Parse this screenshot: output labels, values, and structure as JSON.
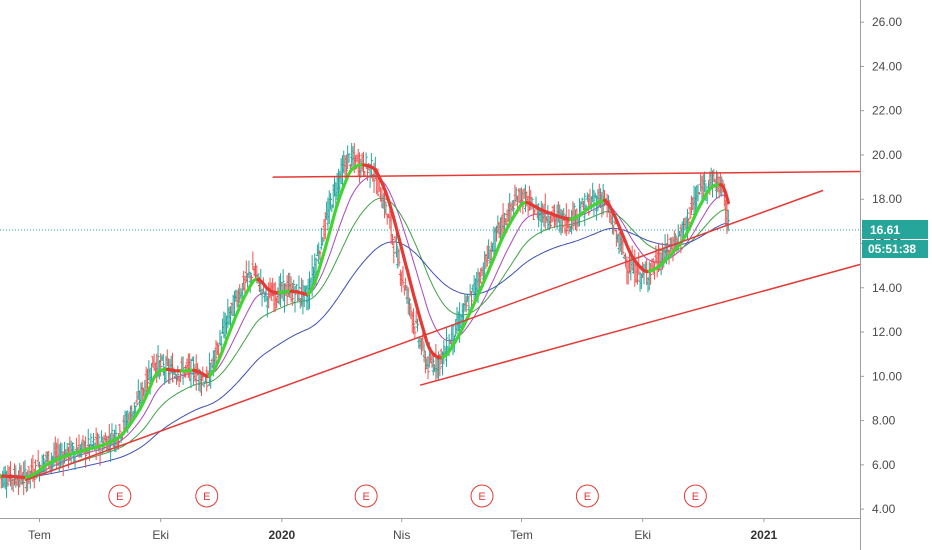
{
  "chart_data": {
    "type": "candlestick",
    "y_axis": {
      "range": [
        3.6,
        27.0
      ],
      "ticks": [
        "26.00",
        "24.00",
        "22.00",
        "20.00",
        "18.00",
        "16.00",
        "14.00",
        "12.00",
        "10.00",
        "8.00",
        "6.00",
        "4.00"
      ],
      "position": "right"
    },
    "x_axis": {
      "range": [
        "2019-06-01",
        "2021-03-15"
      ],
      "labels": [
        {
          "text": "Tem",
          "date": "2019-07-01",
          "bold": false
        },
        {
          "text": "Eki",
          "date": "2019-10-01",
          "bold": false
        },
        {
          "text": "2020",
          "date": "2020-01-01",
          "bold": true
        },
        {
          "text": "Nis",
          "date": "2020-04-01",
          "bold": false
        },
        {
          "text": "Tem",
          "date": "2020-07-01",
          "bold": false
        },
        {
          "text": "Eki",
          "date": "2020-10-01",
          "bold": false
        },
        {
          "text": "2021",
          "date": "2021-01-01",
          "bold": true
        }
      ]
    },
    "price_path": [
      [
        "2019-06-01",
        5.5
      ],
      [
        "2019-06-20",
        5.4
      ],
      [
        "2019-07-05",
        6.2
      ],
      [
        "2019-07-25",
        6.6
      ],
      [
        "2019-08-15",
        6.9
      ],
      [
        "2019-08-30",
        7.4
      ],
      [
        "2019-09-15",
        9.0
      ],
      [
        "2019-09-25",
        10.6
      ],
      [
        "2019-10-10",
        10.2
      ],
      [
        "2019-10-25",
        10.3
      ],
      [
        "2019-11-05",
        9.8
      ],
      [
        "2019-11-20",
        12.5
      ],
      [
        "2019-12-01",
        14.0
      ],
      [
        "2019-12-10",
        14.8
      ],
      [
        "2019-12-20",
        13.6
      ],
      [
        "2020-01-05",
        13.9
      ],
      [
        "2020-01-20",
        13.6
      ],
      [
        "2020-01-30",
        16.0
      ],
      [
        "2020-02-10",
        18.5
      ],
      [
        "2020-02-20",
        19.8
      ],
      [
        "2020-03-01",
        19.6
      ],
      [
        "2020-03-10",
        19.3
      ],
      [
        "2020-03-20",
        17.5
      ],
      [
        "2020-03-30",
        15.0
      ],
      [
        "2020-04-10",
        12.5
      ],
      [
        "2020-04-20",
        10.5
      ],
      [
        "2020-05-01",
        10.8
      ],
      [
        "2020-05-15",
        12.5
      ],
      [
        "2020-05-30",
        14.5
      ],
      [
        "2020-06-15",
        16.8
      ],
      [
        "2020-06-30",
        18.2
      ],
      [
        "2020-07-10",
        17.5
      ],
      [
        "2020-07-25",
        17.2
      ],
      [
        "2020-08-05",
        17.0
      ],
      [
        "2020-08-20",
        17.8
      ],
      [
        "2020-09-01",
        18.1
      ],
      [
        "2020-09-10",
        16.5
      ],
      [
        "2020-09-20",
        15.0
      ],
      [
        "2020-10-01",
        14.5
      ],
      [
        "2020-10-15",
        15.3
      ],
      [
        "2020-10-30",
        16.4
      ],
      [
        "2020-11-10",
        18.0
      ],
      [
        "2020-11-20",
        18.9
      ],
      [
        "2020-11-30",
        18.6
      ],
      [
        "2020-12-05",
        16.6
      ]
    ],
    "bar_noise": 0.45,
    "last_price": "16.61",
    "countdown": "05:51:38",
    "trend_lines": [
      {
        "name": "resistance",
        "from": [
          "2019-12-25",
          19.0
        ],
        "to": [
          "2021-03-15",
          19.25
        ]
      },
      {
        "name": "rising-support",
        "from": [
          "2019-06-20",
          5.3
        ],
        "to": [
          "2021-02-15",
          18.4
        ]
      },
      {
        "name": "long-support",
        "from": [
          "2020-04-15",
          9.6
        ],
        "to": [
          "2021-03-15",
          15.05
        ]
      }
    ],
    "moving_averages": [
      {
        "name": "ma-fast",
        "color": "#555555",
        "smoothing": 0.16
      },
      {
        "name": "ma-medium",
        "color": "#ab47bc",
        "smoothing": 0.07
      },
      {
        "name": "ma-slow",
        "color": "#43a047",
        "smoothing": 0.035
      },
      {
        "name": "ma-long",
        "color": "#3f51b5",
        "smoothing": 0.016
      }
    ],
    "colors": {
      "trend": "#e53935",
      "bar_up": "#26a69a",
      "bar_down": "#ef5350",
      "ma_up": "#43d332",
      "ma_down": "#e53935",
      "price_line": "#26a69a",
      "badge_bg": "#26a69a",
      "earnings": "#e53935"
    },
    "earnings_markers": [
      {
        "label": "E",
        "date": "2019-08-31"
      },
      {
        "label": "E",
        "date": "2019-11-05"
      },
      {
        "label": "E",
        "date": "2020-03-05"
      },
      {
        "label": "E",
        "date": "2020-06-01"
      },
      {
        "label": "E",
        "date": "2020-08-20"
      },
      {
        "label": "E",
        "date": "2020-11-10"
      }
    ]
  }
}
